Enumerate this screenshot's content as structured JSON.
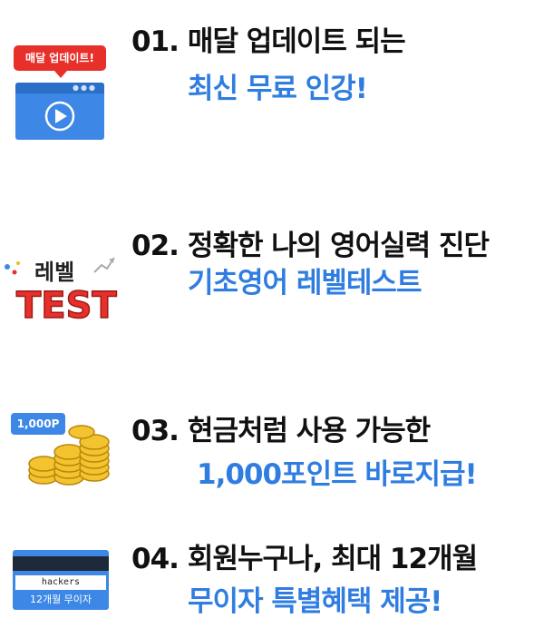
{
  "items": [
    {
      "num": "01.",
      "title": "매달 업데이트 되는",
      "subtitle": "최신 무료 인강!",
      "badge": "매달 업데이트!"
    },
    {
      "num": "02.",
      "title": "정확한 나의 영어실력 진단",
      "subtitle": "기초영어 레벨테스트",
      "logo_top": "레벨",
      "logo_bottom": "TEST"
    },
    {
      "num": "03.",
      "title": "현금처럼 사용 가능한",
      "subtitle": "1,000포인트 바로지급!",
      "tag": "1,000P"
    },
    {
      "num": "04.",
      "title": "회원누구나, 최대 12개월",
      "subtitle": "무이자 특별혜택 제공!",
      "card_name": "hackers",
      "card_label": "12개월 무이자"
    }
  ],
  "colors": {
    "accent": "#2f7de0",
    "title": "#111111",
    "badge_red": "#e8302b"
  },
  "icons": [
    "video-player-icon",
    "level-test-logo-icon",
    "gold-coins-icon",
    "credit-card-icon"
  ]
}
